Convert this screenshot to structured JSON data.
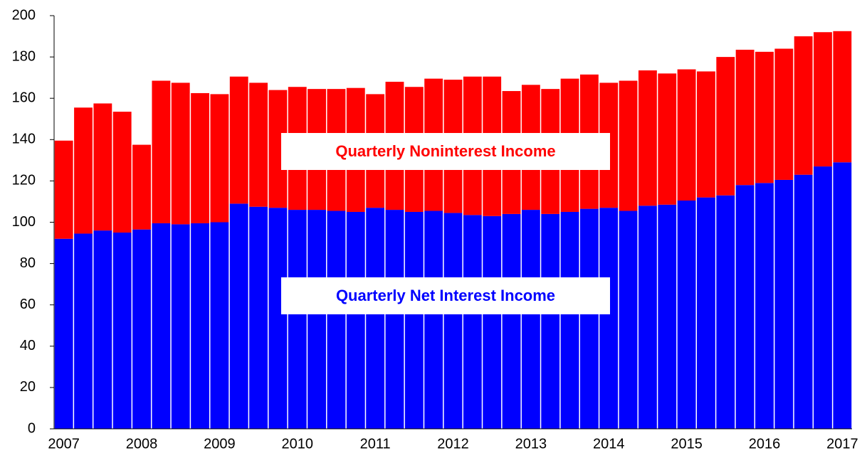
{
  "chart_data": {
    "type": "bar",
    "stacked": true,
    "categories": [
      "2007",
      null,
      null,
      null,
      "2008",
      null,
      null,
      null,
      "2009",
      null,
      null,
      null,
      "2010",
      null,
      null,
      null,
      "2011",
      null,
      null,
      null,
      "2012",
      null,
      null,
      null,
      "2013",
      null,
      null,
      null,
      "2014",
      null,
      null,
      null,
      "2015",
      null,
      null,
      null,
      "2016",
      null,
      null,
      null,
      "2017"
    ],
    "series": [
      {
        "name": "Quarterly Net Interest Income",
        "color": "#0000ff",
        "values": [
          92,
          94.5,
          96,
          95,
          96.5,
          99.5,
          99,
          99.5,
          100,
          109,
          107.5,
          107,
          106,
          106,
          105.5,
          105,
          107,
          106,
          105,
          105.5,
          104.5,
          103.5,
          103,
          104,
          106,
          104,
          105,
          106.5,
          107,
          105.5,
          108,
          108.5,
          110.5,
          112,
          113,
          118,
          119,
          120.5,
          123,
          127,
          129
        ]
      },
      {
        "name": "Quarterly Noninterest Income",
        "color": "#ff0000",
        "values": [
          47.5,
          61,
          61.5,
          58.5,
          41,
          69,
          68.5,
          63,
          62,
          61.5,
          60,
          57,
          59.5,
          58.5,
          59,
          60,
          55,
          62,
          60.5,
          64,
          64.5,
          67,
          67.5,
          59.5,
          60.5,
          60.5,
          64.5,
          65,
          60.5,
          63,
          65.5,
          63.5,
          63.5,
          61,
          67,
          65.5,
          63.5,
          63.5,
          67,
          65,
          63.5
        ]
      }
    ],
    "ylim": [
      0,
      200
    ],
    "yticks": [
      0,
      20,
      40,
      60,
      80,
      100,
      120,
      140,
      160,
      180,
      200
    ]
  }
}
